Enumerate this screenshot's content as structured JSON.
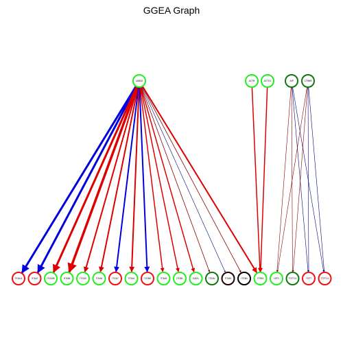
{
  "title": "GGEA Graph",
  "colors": {
    "green": "#22ee22",
    "red": "#ee1111",
    "dark_green": "#117711",
    "dark": "#220000",
    "black": "#000000",
    "edge_red": "#dd0000",
    "edge_blue": "#0000dd",
    "edge_dark_red": "#880000",
    "edge_navy": "#000077"
  },
  "source_nodes": [
    {
      "id": "LAMA2",
      "label": "LAMA2",
      "color": "green"
    },
    {
      "id": "ACTB",
      "label": "ACTB",
      "color": "green"
    },
    {
      "id": "ACTG1",
      "label": "ACTG1",
      "color": "green"
    },
    {
      "id": "JUP",
      "label": "JUP",
      "color": "dark_green"
    },
    {
      "id": "CTNNB",
      "label": "CTNNB",
      "color": "dark_green"
    }
  ],
  "target_nodes": [
    {
      "id": "ITGA11",
      "label": "ITGA11",
      "color": "red"
    },
    {
      "id": "ITGA2",
      "label": "ITGA2",
      "color": "red"
    },
    {
      "id": "ITGA2B",
      "label": "ITGA2B",
      "color": "green"
    },
    {
      "id": "ITGA8",
      "label": "ITGA8",
      "color": "green"
    },
    {
      "id": "ITGA3",
      "label": "ITGA3",
      "color": "green"
    },
    {
      "id": "ITGA6",
      "label": "ITGA6",
      "color": "green"
    },
    {
      "id": "ITGA7",
      "label": "ITGA7",
      "color": "red"
    },
    {
      "id": "ITGA4",
      "label": "ITGA4",
      "color": "green"
    },
    {
      "id": "ITGB8",
      "label": "ITGB8",
      "color": "red"
    },
    {
      "id": "ITGA5",
      "label": "ITGA5",
      "color": "green"
    },
    {
      "id": "ITGB1",
      "label": "ITGB1",
      "color": "green"
    },
    {
      "id": "DAG1",
      "label": "DAG1",
      "color": "green"
    },
    {
      "id": "ITGAV",
      "label": "ITGAV",
      "color": "dark_green"
    },
    {
      "id": "ITGA9",
      "label": "ITGA9",
      "color": "dark"
    },
    {
      "id": "ITGB4",
      "label": "ITGB4",
      "color": "black"
    },
    {
      "id": "ITGB3",
      "label": "ITGB3",
      "color": "green"
    },
    {
      "id": "LEF1",
      "label": "LEF1",
      "color": "green"
    },
    {
      "id": "TCF7L2",
      "label": "TCF7L2",
      "color": "dark_green"
    },
    {
      "id": "TCF7",
      "label": "TCF7",
      "color": "red"
    },
    {
      "id": "TCF7L1",
      "label": "TCF7L1",
      "color": "red"
    }
  ],
  "edges": [
    {
      "from": "LAMA2",
      "to": "ITGA11",
      "color": "edge_blue",
      "weight": 3
    },
    {
      "from": "LAMA2",
      "to": "ITGA2",
      "color": "edge_blue",
      "weight": 3
    },
    {
      "from": "LAMA2",
      "to": "ITGA2B",
      "color": "edge_red",
      "weight": 3
    },
    {
      "from": "LAMA2",
      "to": "ITGA8",
      "color": "edge_red",
      "weight": 3.5
    },
    {
      "from": "LAMA2",
      "to": "ITGA3",
      "color": "edge_red",
      "weight": 2
    },
    {
      "from": "LAMA2",
      "to": "ITGA6",
      "color": "edge_red",
      "weight": 2
    },
    {
      "from": "LAMA2",
      "to": "ITGA7",
      "color": "edge_blue",
      "weight": 2
    },
    {
      "from": "LAMA2",
      "to": "ITGA4",
      "color": "edge_red",
      "weight": 2
    },
    {
      "from": "LAMA2",
      "to": "ITGB8",
      "color": "edge_blue",
      "weight": 2
    },
    {
      "from": "LAMA2",
      "to": "ITGA5",
      "color": "edge_red",
      "weight": 1.5
    },
    {
      "from": "LAMA2",
      "to": "ITGB1",
      "color": "edge_red",
      "weight": 1.5
    },
    {
      "from": "LAMA2",
      "to": "DAG1",
      "color": "edge_red",
      "weight": 1.5
    },
    {
      "from": "LAMA2",
      "to": "ITGAV",
      "color": "edge_dark_red",
      "weight": 0.8
    },
    {
      "from": "LAMA2",
      "to": "ITGA9",
      "color": "edge_navy",
      "weight": 0.6
    },
    {
      "from": "LAMA2",
      "to": "ITGB4",
      "color": "edge_dark_red",
      "weight": 0.8
    },
    {
      "from": "LAMA2",
      "to": "ITGB3",
      "color": "edge_red",
      "weight": 2
    },
    {
      "from": "ACTB",
      "to": "ITGB3",
      "color": "edge_red",
      "weight": 1.5
    },
    {
      "from": "ACTG1",
      "to": "ITGB3",
      "color": "edge_red",
      "weight": 1.5
    },
    {
      "from": "JUP",
      "to": "LEF1",
      "color": "edge_dark_red",
      "weight": 0.6
    },
    {
      "from": "JUP",
      "to": "TCF7L2",
      "color": "edge_dark_red",
      "weight": 0.6
    },
    {
      "from": "JUP",
      "to": "TCF7",
      "color": "edge_navy",
      "weight": 0.6
    },
    {
      "from": "JUP",
      "to": "TCF7L1",
      "color": "edge_navy",
      "weight": 0.6
    },
    {
      "from": "CTNNB",
      "to": "LEF1",
      "color": "edge_dark_red",
      "weight": 0.6
    },
    {
      "from": "CTNNB",
      "to": "TCF7L2",
      "color": "edge_dark_red",
      "weight": 0.6
    },
    {
      "from": "CTNNB",
      "to": "TCF7",
      "color": "edge_navy",
      "weight": 0.6
    },
    {
      "from": "CTNNB",
      "to": "TCF7L1",
      "color": "edge_navy",
      "weight": 0.6
    }
  ]
}
